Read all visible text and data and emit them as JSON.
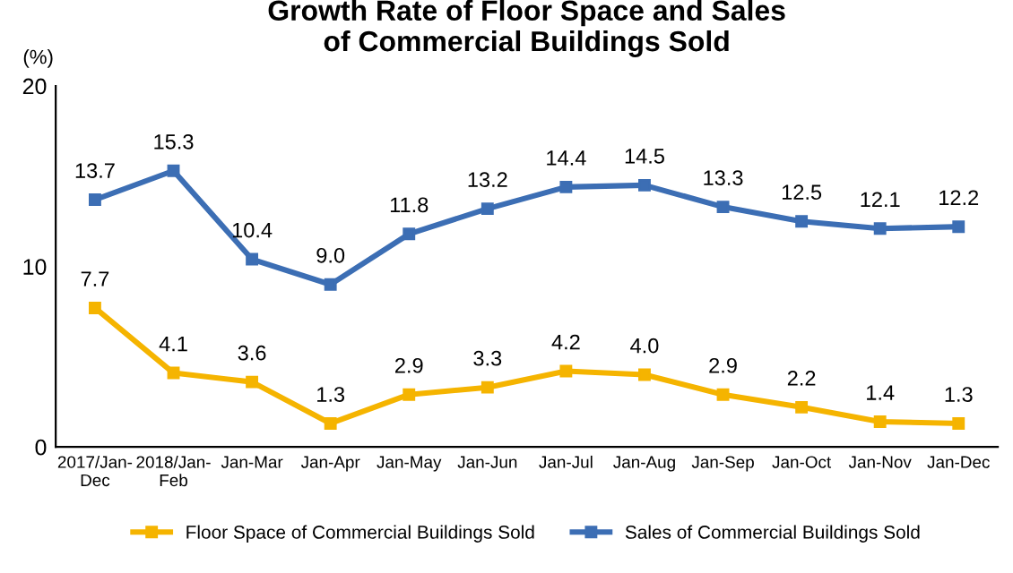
{
  "chart_data": {
    "type": "line",
    "title": "Growth Rate of Floor Space and Sales\nof Commercial Buildings Sold",
    "ylabel": "(%)",
    "categories": [
      "2017/Jan-\nDec",
      "2018/Jan-\nFeb",
      "Jan-Mar",
      "Jan-Apr",
      "Jan-May",
      "Jan-Jun",
      "Jan-Jul",
      "Jan-Aug",
      "Jan-Sep",
      "Jan-Oct",
      "Jan-Nov",
      "Jan-Dec"
    ],
    "series": [
      {
        "name": "Floor Space of Commercial Buildings Sold",
        "color": "#f5b400",
        "values": [
          7.7,
          4.1,
          3.6,
          1.3,
          2.9,
          3.3,
          4.2,
          4.0,
          2.9,
          2.2,
          1.4,
          1.3
        ],
        "value_labels": [
          "7.7",
          "4.1",
          "3.6",
          "1.3",
          "2.9",
          "3.3",
          "4.2",
          "4.0",
          "2.9",
          "2.2",
          "1.4",
          "1.3"
        ]
      },
      {
        "name": "Sales of Commercial Buildings Sold",
        "color": "#3c6eb4",
        "values": [
          13.7,
          15.3,
          10.4,
          9.0,
          11.8,
          13.2,
          14.4,
          14.5,
          13.3,
          12.5,
          12.1,
          12.2
        ],
        "value_labels": [
          "13.7",
          "15.3",
          "10.4",
          "9.0",
          "11.8",
          "13.2",
          "14.4",
          "14.5",
          "13.3",
          "12.5",
          "12.1",
          "12.2"
        ]
      }
    ],
    "ylim": [
      0,
      20
    ],
    "yticks": [
      0,
      10,
      20
    ],
    "grid": false,
    "legend": "bottom",
    "marker": "square",
    "line_style": "solid"
  }
}
